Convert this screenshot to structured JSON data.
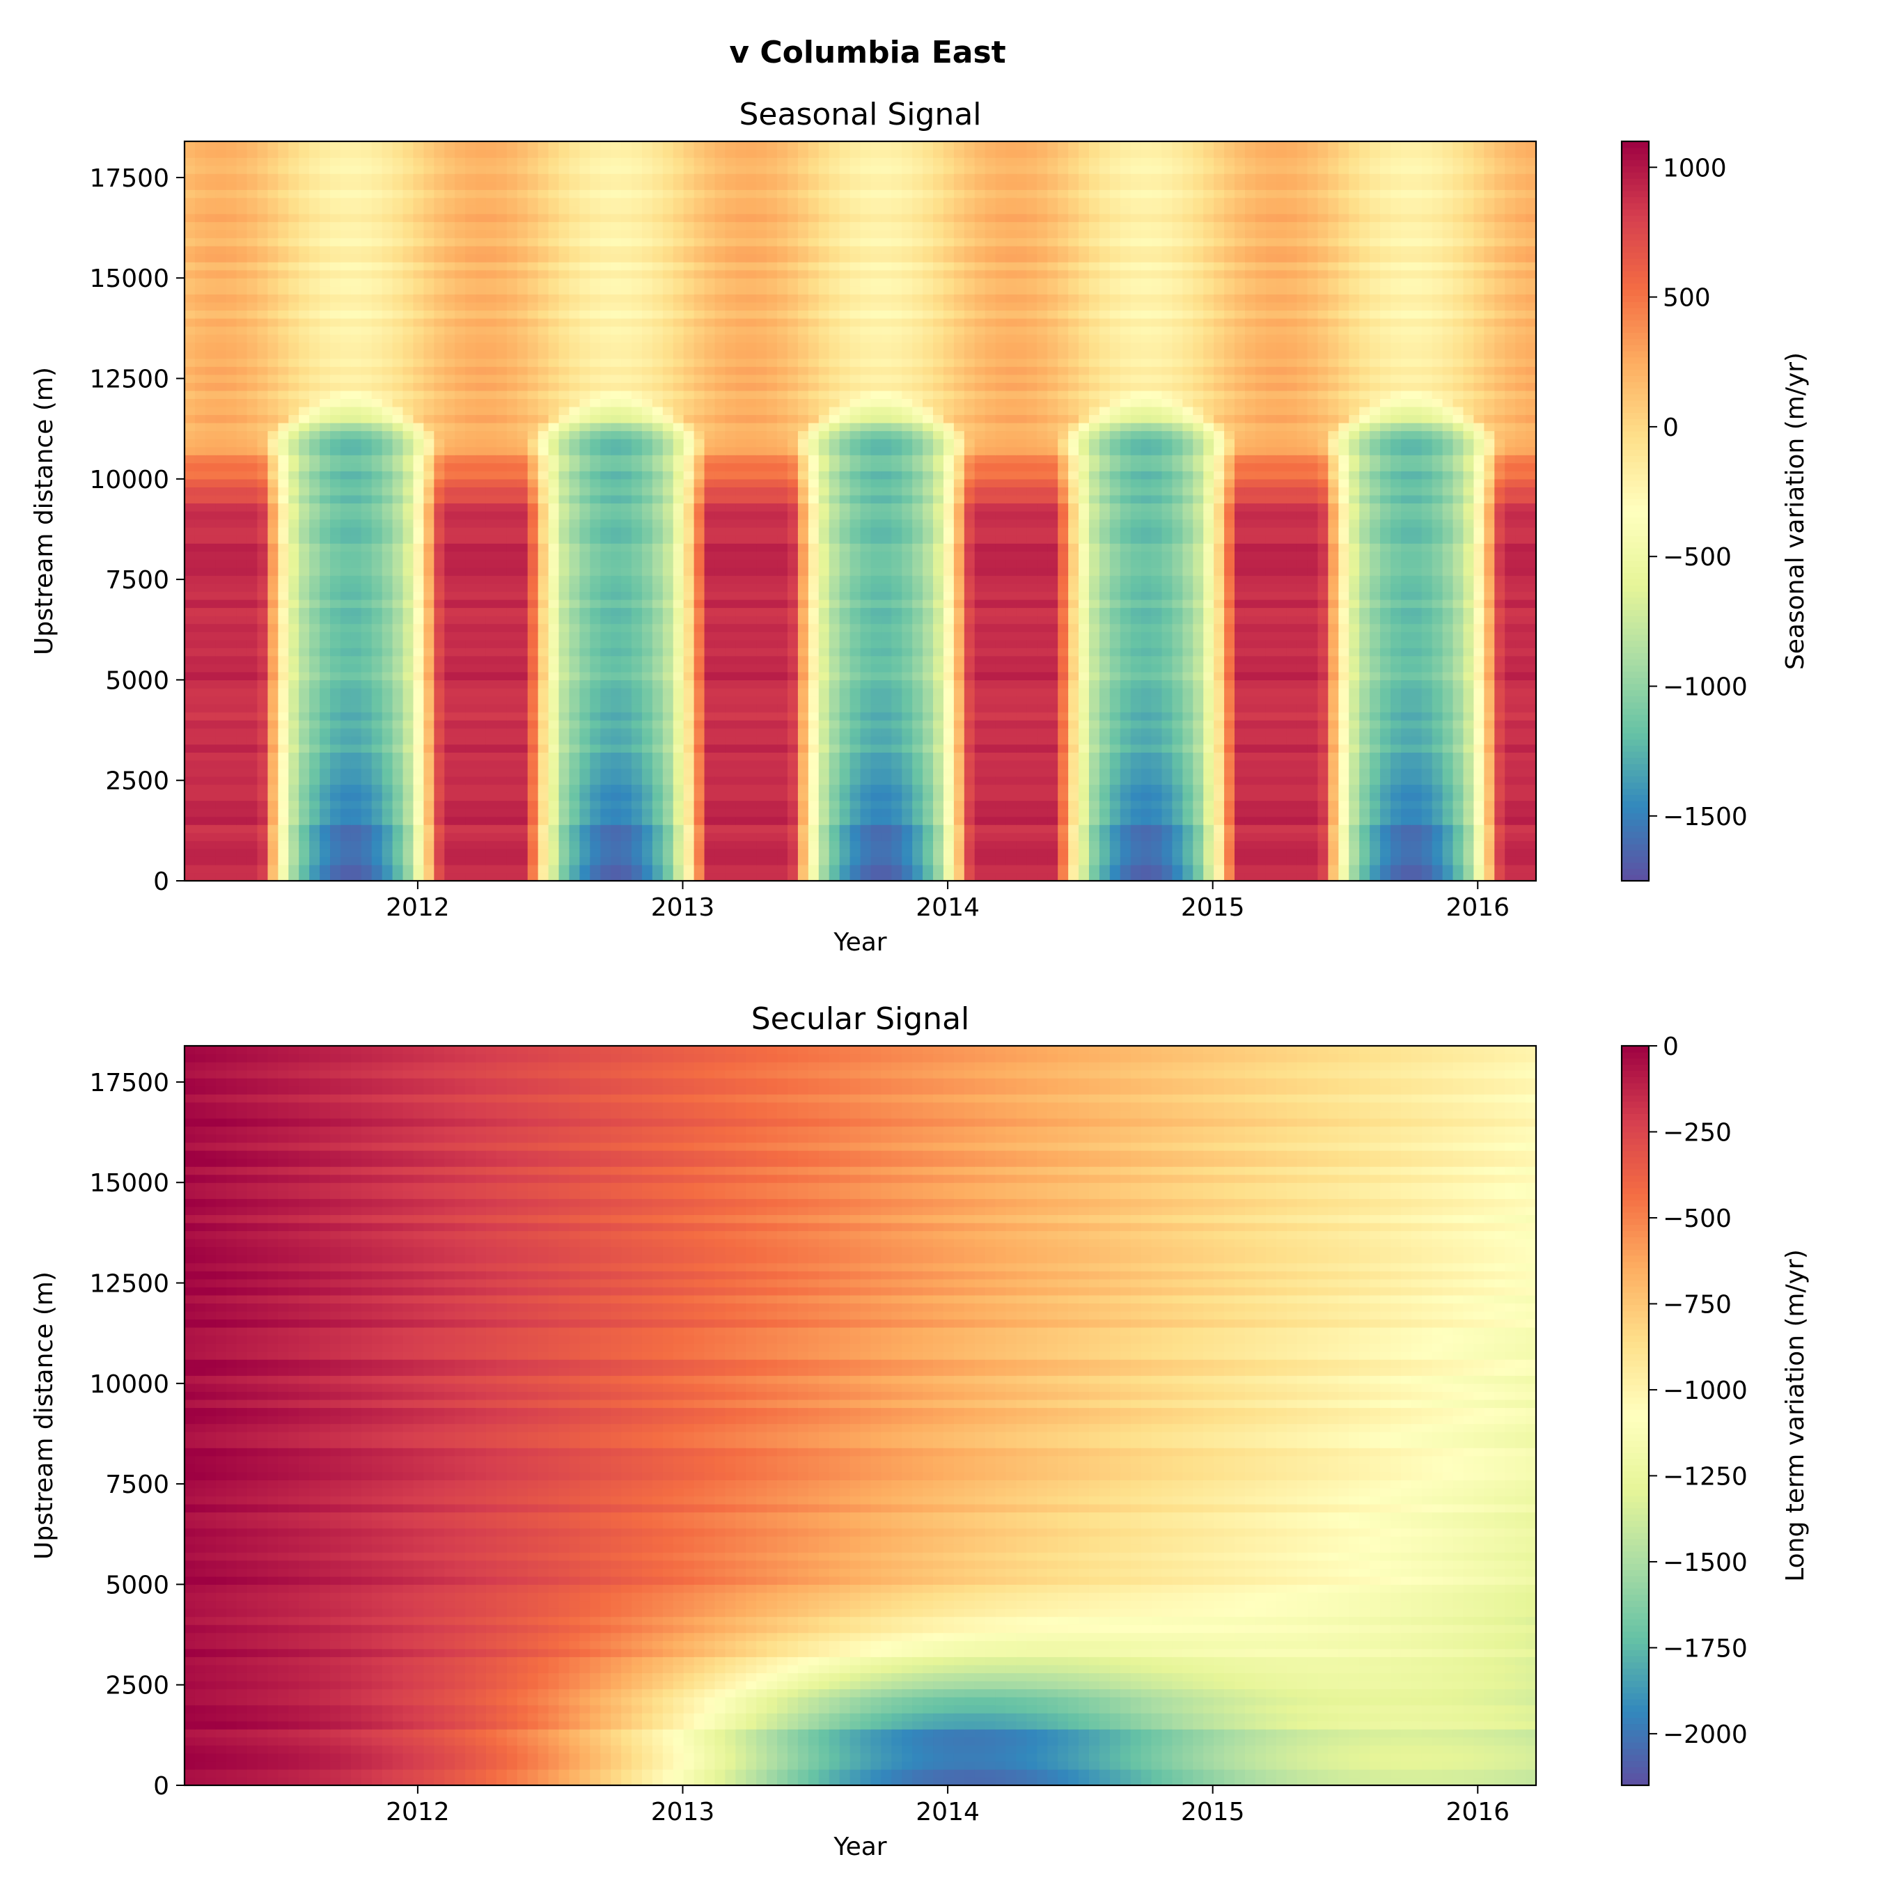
{
  "figure": {
    "suptitle": "v Columbia East"
  },
  "panels": [
    {
      "title": "Seasonal Signal",
      "xlabel": "Year",
      "ylabel": "Upstream distance (m)",
      "colorbar_label": "Seasonal variation (m/yr)"
    },
    {
      "title": "Secular Signal",
      "xlabel": "Year",
      "ylabel": "Upstream distance (m)",
      "colorbar_label": "Long term variation (m/yr)"
    }
  ],
  "chart_data": [
    {
      "type": "heatmap",
      "title": "Seasonal Signal",
      "xlabel": "Year",
      "ylabel": "Upstream distance (m)",
      "colormap": "Spectral_r",
      "xlim": [
        2011.12,
        2016.22
      ],
      "ylim": [
        0,
        18400
      ],
      "x_ticks": [
        2012,
        2013,
        2014,
        2015,
        2016
      ],
      "x_tick_labels": [
        "2012",
        "2013",
        "2014",
        "2015",
        "2016"
      ],
      "y_ticks": [
        0,
        2500,
        5000,
        7500,
        10000,
        12500,
        15000,
        17500
      ],
      "y_tick_labels": [
        "0",
        "2500",
        "5000",
        "7500",
        "10000",
        "12500",
        "15000",
        "17500"
      ],
      "colorbar": {
        "label": "Seasonal variation (m/yr)",
        "range": [
          -1750,
          1100
        ],
        "ticks": [
          1000,
          500,
          0,
          -500,
          -1000,
          -1500
        ],
        "tick_labels": [
          "1000",
          "500",
          "0",
          "−500",
          "−1000",
          "−1500"
        ]
      },
      "pattern": {
        "minima_years": [
          2011.75,
          2012.75,
          2013.75,
          2014.75,
          2015.75
        ],
        "minimum_value": -1650,
        "lower_zone_max": 900,
        "upper_zone_amplitude": 220,
        "transition_distance": 11000
      }
    },
    {
      "type": "heatmap",
      "title": "Secular Signal",
      "xlabel": "Year",
      "ylabel": "Upstream distance (m)",
      "colormap": "Spectral_r",
      "xlim": [
        2011.12,
        2016.22
      ],
      "ylim": [
        0,
        18400
      ],
      "x_ticks": [
        2012,
        2013,
        2014,
        2015,
        2016
      ],
      "x_tick_labels": [
        "2012",
        "2013",
        "2014",
        "2015",
        "2016"
      ],
      "y_ticks": [
        0,
        2500,
        5000,
        7500,
        10000,
        12500,
        15000,
        17500
      ],
      "y_tick_labels": [
        "0",
        "2500",
        "5000",
        "7500",
        "10000",
        "12500",
        "15000",
        "17500"
      ],
      "colorbar": {
        "label": "Long term variation (m/yr)",
        "range": [
          -2150,
          0
        ],
        "ticks": [
          0,
          -250,
          -500,
          -750,
          -1000,
          -1250,
          -1500,
          -1750,
          -2000
        ],
        "tick_labels": [
          "0",
          "−250",
          "−500",
          "−750",
          "−1000",
          "−1250",
          "−1500",
          "−1750",
          "−2000"
        ]
      },
      "pattern": {
        "deepest_year": 2013.9,
        "deepest_distance": 800,
        "deepest_value": -2050,
        "start_value": -30
      }
    }
  ]
}
